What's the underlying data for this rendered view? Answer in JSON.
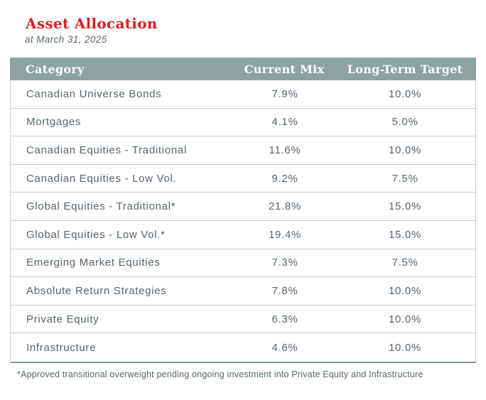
{
  "chart_data": {
    "type": "table",
    "title": "Asset Allocation",
    "subtitle": "at March 31, 2025",
    "columns": [
      "Category",
      "Current Mix",
      "Long-Term Target"
    ],
    "rows": [
      {
        "category": "Canadian Universe Bonds",
        "current_mix": "7.9%",
        "long_term_target": "10.0%"
      },
      {
        "category": "Mortgages",
        "current_mix": "4.1%",
        "long_term_target": "5.0%"
      },
      {
        "category": "Canadian Equities - Traditional",
        "current_mix": "11.6%",
        "long_term_target": "10.0%"
      },
      {
        "category": "Canadian Equities - Low Vol.",
        "current_mix": "9.2%",
        "long_term_target": "7.5%"
      },
      {
        "category": "Global Equities - Traditional*",
        "current_mix": "21.8%",
        "long_term_target": "15.0%"
      },
      {
        "category": "Global Equities - Low Vol.*",
        "current_mix": "19.4%",
        "long_term_target": "15.0%"
      },
      {
        "category": "Emerging Market Equities",
        "current_mix": "7.3%",
        "long_term_target": "7.5%"
      },
      {
        "category": "Absolute Return Strategies",
        "current_mix": "7.8%",
        "long_term_target": "10.0%"
      },
      {
        "category": "Private Equity",
        "current_mix": "6.3%",
        "long_term_target": "10.0%"
      },
      {
        "category": "Infrastructure",
        "current_mix": "4.6%",
        "long_term_target": "10.0%"
      }
    ],
    "current_mix_values": [
      7.9,
      4.1,
      11.6,
      9.2,
      21.8,
      19.4,
      7.3,
      7.8,
      6.3,
      4.6
    ],
    "long_term_target_values": [
      10.0,
      5.0,
      10.0,
      7.5,
      15.0,
      15.0,
      7.5,
      10.0,
      10.0,
      10.0
    ],
    "footnote": "*Approved transitional overweight pending ongoing investment into Private Equity and Infrastructure",
    "colors": {
      "title_red": "#DE1B21",
      "header_bg": "#8DA39F",
      "header_text": "#FFFFFF",
      "body_text": "#54676C",
      "row_divider": "#C4CFCD",
      "table_bottom_border": "#7E9793"
    }
  }
}
